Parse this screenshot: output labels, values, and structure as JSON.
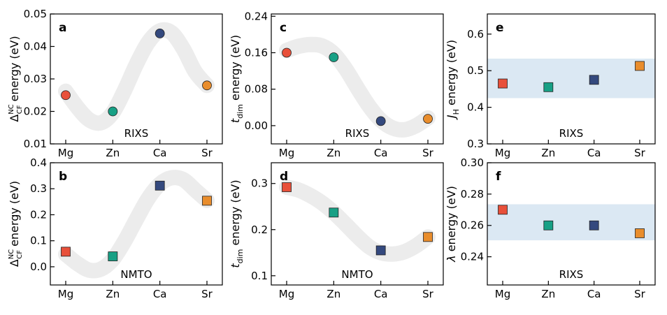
{
  "colors": {
    "Mg": "#e8503a",
    "Zn": "#17a085",
    "Ca": "#34497e",
    "Sr": "#e98d2c",
    "trend": "#ececec",
    "band": "#dbe8f3"
  },
  "chart_data": [
    {
      "panel": "a",
      "type": "scatter",
      "marker": "circle",
      "categories": [
        "Mg",
        "Zn",
        "Ca",
        "Sr"
      ],
      "values": [
        0.025,
        0.02,
        0.044,
        0.028
      ],
      "ylabel_prefix": "Δ",
      "ylabel_sub": "CF",
      "ylabel_sup": "NC",
      "ylabel_suffix": " energy (eV)",
      "ylim": [
        0.01,
        0.05
      ],
      "yticks": [
        0.01,
        0.02,
        0.03,
        0.04,
        0.05
      ],
      "ytick_labels": [
        "0.01",
        "0.02",
        "0.03",
        "0.04",
        "0.05"
      ],
      "method": "RIXS",
      "trend": [
        [
          0,
          0.0262
        ],
        [
          0.25,
          0.0212
        ],
        [
          0.5,
          0.0174
        ],
        [
          0.75,
          0.0165
        ],
        [
          1,
          0.0196
        ],
        [
          1.25,
          0.0265
        ],
        [
          1.5,
          0.0345
        ],
        [
          1.75,
          0.0412
        ],
        [
          2,
          0.0448
        ],
        [
          2.25,
          0.0442
        ],
        [
          2.5,
          0.0392
        ],
        [
          2.75,
          0.0322
        ],
        [
          3,
          0.028
        ]
      ]
    },
    {
      "panel": "c",
      "type": "scatter",
      "marker": "circle",
      "categories": [
        "Mg",
        "Zn",
        "Ca",
        "Sr"
      ],
      "values": [
        0.16,
        0.15,
        0.01,
        0.015
      ],
      "ylabel_prefix": "t",
      "ylabel_sub": "dim",
      "ylabel_sup": "",
      "ylabel_suffix": " energy (eV)",
      "ylim": [
        -0.04,
        0.245
      ],
      "yticks": [
        0,
        0.08,
        0.16,
        0.24
      ],
      "ytick_labels": [
        "0.00",
        "0.08",
        "0.16",
        "0.24"
      ],
      "method": "RIXS",
      "trend": [
        [
          0,
          0.165
        ],
        [
          0.25,
          0.174
        ],
        [
          0.5,
          0.178
        ],
        [
          0.75,
          0.175
        ],
        [
          1,
          0.158
        ],
        [
          1.25,
          0.125
        ],
        [
          1.5,
          0.083
        ],
        [
          1.75,
          0.043
        ],
        [
          2,
          0.012
        ],
        [
          2.25,
          -0.005
        ],
        [
          2.5,
          -0.009
        ],
        [
          2.75,
          0
        ],
        [
          3,
          0.017
        ]
      ]
    },
    {
      "panel": "e",
      "type": "scatter",
      "marker": "square",
      "categories": [
        "Mg",
        "Zn",
        "Ca",
        "Sr"
      ],
      "values": [
        0.465,
        0.455,
        0.475,
        0.513
      ],
      "ylabel_prefix": "J",
      "ylabel_sub": "H",
      "ylabel_sup": "",
      "ylabel_suffix": " energy (eV)",
      "ylim": [
        0.3,
        0.655
      ],
      "yticks": [
        0.3,
        0.4,
        0.5,
        0.6
      ],
      "ytick_labels": [
        "0.3",
        "0.4",
        "0.5",
        "0.6"
      ],
      "method": "RIXS",
      "band": [
        0.425,
        0.533
      ]
    },
    {
      "panel": "b",
      "type": "scatter",
      "marker": "square",
      "categories": [
        "Mg",
        "Zn",
        "Ca",
        "Sr"
      ],
      "values": [
        0.058,
        0.04,
        0.312,
        0.254
      ],
      "ylabel_prefix": "Δ",
      "ylabel_sub": "CF",
      "ylabel_sup": "NC",
      "ylabel_suffix": " energy (eV)",
      "ylim": [
        -0.07,
        0.4
      ],
      "yticks": [
        0,
        0.1,
        0.2,
        0.3,
        0.4
      ],
      "ytick_labels": [
        "0.0",
        "0.1",
        "0.2",
        "0.3",
        "0.4"
      ],
      "method": "NMTO",
      "trend": [
        [
          0,
          0.048
        ],
        [
          0.25,
          0.012
        ],
        [
          0.5,
          -0.013
        ],
        [
          0.75,
          -0.009
        ],
        [
          1,
          0.028
        ],
        [
          1.25,
          0.098
        ],
        [
          1.5,
          0.182
        ],
        [
          1.75,
          0.262
        ],
        [
          2,
          0.318
        ],
        [
          2.25,
          0.342
        ],
        [
          2.5,
          0.335
        ],
        [
          2.75,
          0.295
        ],
        [
          3,
          0.255
        ]
      ]
    },
    {
      "panel": "d",
      "type": "scatter",
      "marker": "square",
      "categories": [
        "Mg",
        "Zn",
        "Ca",
        "Sr"
      ],
      "values": [
        0.292,
        0.237,
        0.155,
        0.184
      ],
      "ylabel_prefix": "t",
      "ylabel_sub": "dim",
      "ylabel_sup": "",
      "ylabel_suffix": " energy (eV)",
      "ylim": [
        0.08,
        0.345
      ],
      "yticks": [
        0.1,
        0.2,
        0.3
      ],
      "ytick_labels": [
        "0.1",
        "0.2",
        "0.3"
      ],
      "method": "NMTO",
      "trend": [
        [
          0,
          0.292
        ],
        [
          0.25,
          0.286
        ],
        [
          0.5,
          0.274
        ],
        [
          0.75,
          0.258
        ],
        [
          1,
          0.237
        ],
        [
          1.25,
          0.212
        ],
        [
          1.5,
          0.186
        ],
        [
          1.75,
          0.163
        ],
        [
          2,
          0.15
        ],
        [
          2.25,
          0.147
        ],
        [
          2.5,
          0.152
        ],
        [
          2.75,
          0.165
        ],
        [
          3,
          0.184
        ]
      ]
    },
    {
      "panel": "f",
      "type": "scatter",
      "marker": "square",
      "categories": [
        "Mg",
        "Zn",
        "Ca",
        "Sr"
      ],
      "values": [
        0.27,
        0.26,
        0.26,
        0.255
      ],
      "ylabel_prefix": "λ",
      "ylabel_sub": "",
      "ylabel_sup": "",
      "ylabel_suffix": " energy (eV)",
      "ylim": [
        0.222,
        0.3
      ],
      "yticks": [
        0.24,
        0.26,
        0.28,
        0.3
      ],
      "ytick_labels": [
        "0.24",
        "0.26",
        "0.28",
        "0.30"
      ],
      "method": "RIXS",
      "band": [
        0.2505,
        0.2735
      ]
    }
  ]
}
